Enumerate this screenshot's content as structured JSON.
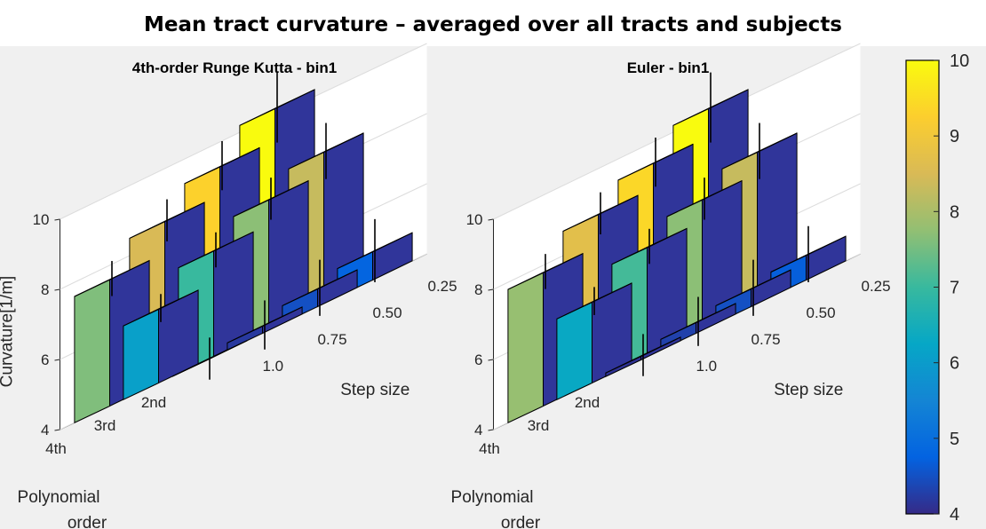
{
  "figure": {
    "title": "Mean tract curvature – averaged over all tracts and subjects"
  },
  "chart_data": [
    {
      "type": "bar3",
      "title": "4th-order Runge Kutta - bin1",
      "zlabel": "Curvature[1/m]",
      "xlabel": "Polynomial order",
      "xlabel_lines": [
        "Polynomial",
        "order"
      ],
      "ylabel": "Step size",
      "x_categories": [
        "4th",
        "3rd",
        "2nd"
      ],
      "y_categories": [
        "1.0",
        "0.75",
        "0.50",
        "0.25"
      ],
      "zlim": [
        4,
        10
      ],
      "z_ticks": [
        "4",
        "6",
        "8",
        "10"
      ],
      "values": [
        [
          7.6,
          8.5,
          9.3,
          10.2
        ],
        [
          6.1,
          7.0,
          7.7,
          8.3
        ],
        [
          4.0,
          4.2,
          4.5,
          4.8
        ]
      ],
      "error": [
        [
          0.5,
          0.6,
          0.7,
          1.0
        ],
        [
          0.4,
          0.5,
          0.6,
          0.8
        ],
        [
          0.6,
          0.7,
          0.8,
          0.9
        ]
      ]
    },
    {
      "type": "bar3",
      "title": "Euler - bin1",
      "zlabel": "",
      "xlabel": "Polynomial order",
      "xlabel_lines": [
        "Polynomial",
        "order"
      ],
      "ylabel": "Step size",
      "x_categories": [
        "4th",
        "3rd",
        "2nd"
      ],
      "y_categories": [
        "1.0",
        "0.75",
        "0.50",
        "0.25"
      ],
      "zlim": [
        4,
        10
      ],
      "z_ticks": [
        "4",
        "6",
        "8",
        "10"
      ],
      "values": [
        [
          7.8,
          8.7,
          9.4,
          10.2
        ],
        [
          6.3,
          7.1,
          7.7,
          8.3
        ],
        [
          4.1,
          4.3,
          4.5,
          4.7
        ]
      ],
      "error": [
        [
          0.5,
          0.6,
          0.7,
          1.0
        ],
        [
          0.4,
          0.5,
          0.6,
          0.8
        ],
        [
          0.6,
          0.7,
          0.8,
          0.8
        ]
      ]
    }
  ],
  "colorbar": {
    "min": 4,
    "max": 10,
    "ticks": [
      "4",
      "5",
      "6",
      "7",
      "8",
      "9",
      "10"
    ],
    "colormap": "parula",
    "colormap_stops": [
      "#352a87",
      "#0363e1",
      "#1485d4",
      "#06a7c6",
      "#38b99e",
      "#92bf73",
      "#d9ba56",
      "#fcce2e",
      "#f9fb0e"
    ],
    "edge_color": "#000000"
  }
}
